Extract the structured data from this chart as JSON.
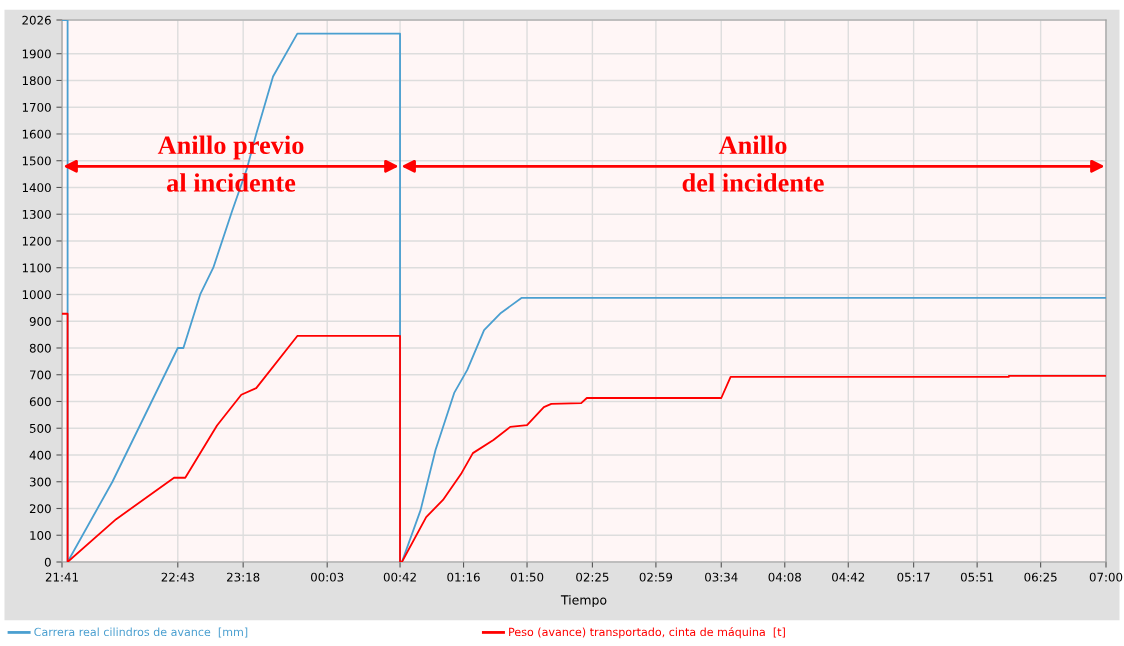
{
  "chart_data": {
    "type": "line",
    "xlabel": "Tiempo",
    "series": [
      {
        "name": "Carrera real cilindros de avance  [mm]",
        "color": "#4a9fd0",
        "x": [
          "2000-01-01T21:41",
          "2000-01-01T21:44",
          "2000-01-01T21:44",
          "2000-01-01T22:08",
          "2000-01-01T22:43",
          "2000-01-01T22:46",
          "2000-01-01T22:55",
          "2000-01-01T23:02",
          "2000-01-01T23:12",
          "2000-01-01T23:20",
          "2000-01-01T23:25",
          "2000-01-01T23:34",
          "2000-01-01T23:47",
          "2000-01-02T00:42",
          "2000-01-02T00:42",
          "2000-01-02T00:43",
          "2000-01-02T00:53",
          "2000-01-02T01:01",
          "2000-01-02T01:11",
          "2000-01-02T01:18",
          "2000-01-02T01:27",
          "2000-01-02T01:36",
          "2000-01-02T01:47",
          "2000-01-02T07:00"
        ],
        "values": [
          2026,
          2026,
          0,
          300,
          800,
          800,
          1000,
          1100,
          1310,
          1470,
          1600,
          1815,
          1975,
          1975,
          0,
          0,
          194,
          419,
          632,
          718,
          867,
          931,
          987,
          987
        ]
      },
      {
        "name": "Peso (avance) transportado, cinta de máquina  [t]",
        "color": "#ff0000",
        "x": [
          "2000-01-01T21:41",
          "2000-01-01T21:44",
          "2000-01-01T21:44",
          "2000-01-01T22:10",
          "2000-01-01T22:41",
          "2000-01-01T22:47",
          "2000-01-01T23:04",
          "2000-01-01T23:17",
          "2000-01-01T23:25",
          "2000-01-01T23:47",
          "2000-01-02T00:42",
          "2000-01-02T00:42",
          "2000-01-02T00:43",
          "2000-01-02T00:56",
          "2000-01-02T01:05",
          "2000-01-02T01:15",
          "2000-01-02T01:21",
          "2000-01-02T01:32",
          "2000-01-02T01:41",
          "2000-01-02T01:50",
          "2000-01-02T01:59",
          "2000-01-02T02:03",
          "2000-01-02T02:19",
          "2000-01-02T02:22",
          "2000-01-02T03:34",
          "2000-01-02T03:39",
          "2000-01-02T06:08",
          "2000-01-02T06:08",
          "2000-01-02T07:00"
        ],
        "values": [
          928,
          928,
          0,
          160,
          315,
          315,
          510,
          625,
          650,
          845,
          845,
          0,
          0,
          168,
          232,
          333,
          407,
          456,
          505,
          512,
          579,
          591,
          594,
          613,
          613,
          692,
          692,
          696,
          696
        ]
      }
    ],
    "xlim": [
      "2000-01-01T21:41",
      "2000-01-02T07:00"
    ],
    "xticks": [
      {
        "value": "2000-01-01T21:41",
        "label": "21:41"
      },
      {
        "value": "2000-01-01T22:43",
        "label": "22:43"
      },
      {
        "value": "2000-01-01T23:18",
        "label": "23:18"
      },
      {
        "value": "2000-01-02T00:03",
        "label": "00:03"
      },
      {
        "value": "2000-01-02T00:42",
        "label": "00:42"
      },
      {
        "value": "2000-01-02T01:16",
        "label": "01:16"
      },
      {
        "value": "2000-01-02T01:50",
        "label": "01:50"
      },
      {
        "value": "2000-01-02T02:25",
        "label": "02:25"
      },
      {
        "value": "2000-01-02T02:59",
        "label": "02:59"
      },
      {
        "value": "2000-01-02T03:34",
        "label": "03:34"
      },
      {
        "value": "2000-01-02T04:08",
        "label": "04:08"
      },
      {
        "value": "2000-01-02T04:42",
        "label": "04:42"
      },
      {
        "value": "2000-01-02T05:17",
        "label": "05:17"
      },
      {
        "value": "2000-01-02T05:51",
        "label": "05:51"
      },
      {
        "value": "2000-01-02T06:25",
        "label": "06:25"
      },
      {
        "value": "2000-01-02T07:00",
        "label": "07:00"
      }
    ],
    "ylim": [
      0,
      2026
    ],
    "yticks": [
      0,
      100,
      200,
      300,
      400,
      500,
      600,
      700,
      800,
      900,
      1000,
      1100,
      1200,
      1300,
      1400,
      1500,
      1600,
      1700,
      1800,
      1900,
      2026
    ],
    "bands": [
      {
        "axis": "x",
        "from": "2000-01-01T21:41",
        "to": "2000-01-02T00:42",
        "label": "Anillo previo\nal incidente",
        "color": "#ff0000"
      },
      {
        "axis": "x",
        "from": "2000-01-02T00:42",
        "to": "2000-01-02T07:00",
        "label": "Anillo\ndel incidente",
        "color": "#ff0000"
      }
    ],
    "grid": true,
    "legend": "bottom",
    "marker": "none",
    "line_style": "solid"
  }
}
